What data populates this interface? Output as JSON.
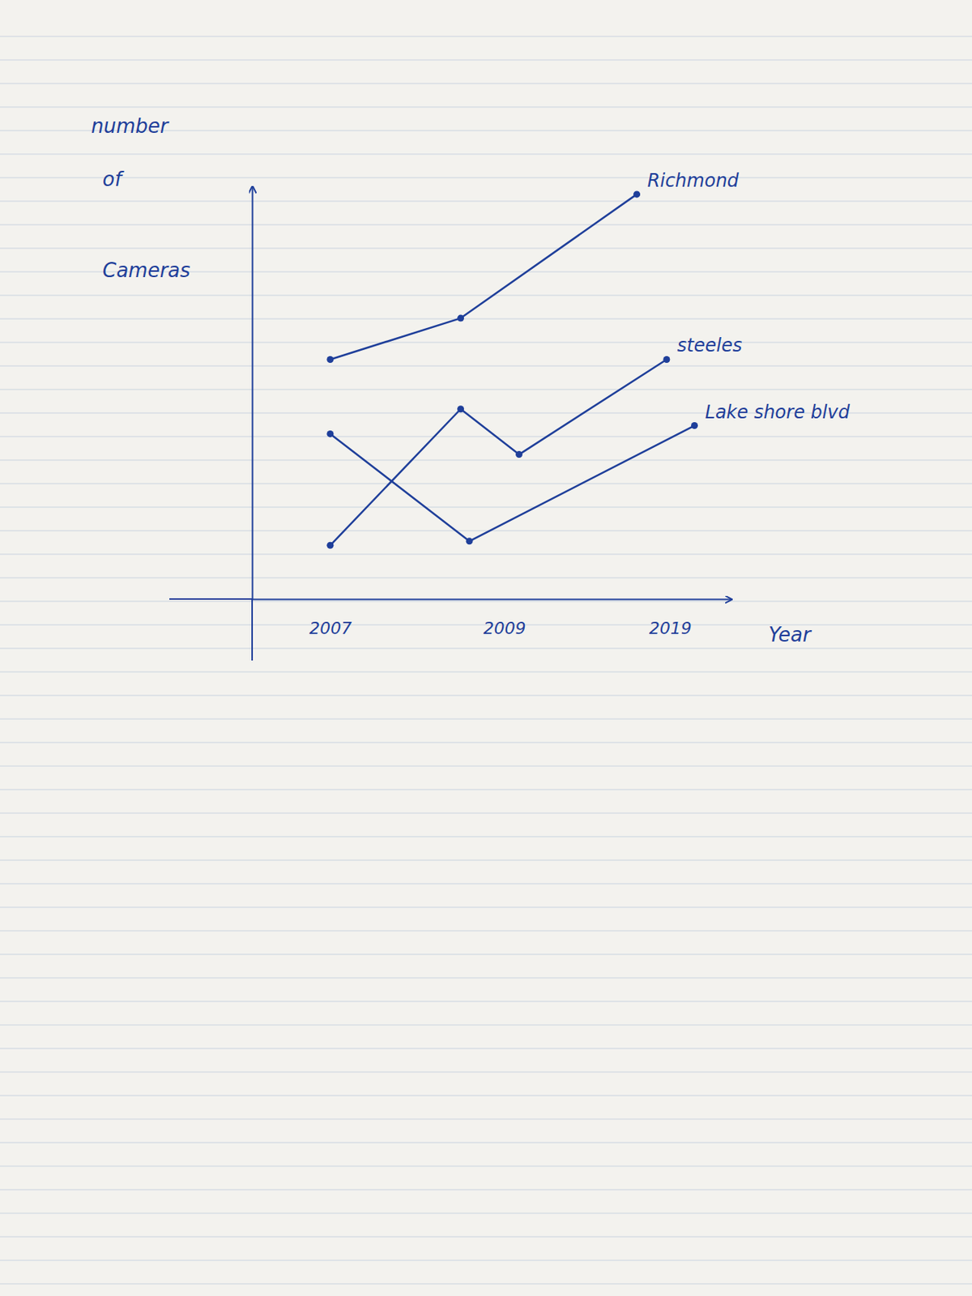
{
  "chart_data": {
    "type": "line",
    "x_label": "Year",
    "y_label": "number of Cameras",
    "xlim": [
      2006,
      2022.5
    ],
    "xticks": [
      2007,
      2009,
      2019
    ],
    "ylim": [
      0,
      10
    ],
    "tick_labels": "x",
    "grid": false,
    "marker": "circle",
    "line_style": "solid",
    "series": [
      {
        "name": "Richmond",
        "color": "#1f3f9a",
        "x": [
          2007,
          2008.5,
          2017
        ],
        "values": [
          5.8,
          6.8,
          9.8
        ]
      },
      {
        "name": "steeles",
        "color": "#1f3f9a",
        "x": [
          2007,
          2008.5,
          2009.9,
          2018.8
        ],
        "values": [
          1.3,
          4.6,
          3.5,
          5.8
        ]
      },
      {
        "name": "Lake shore blvd",
        "color": "#1f3f9a",
        "x": [
          2007,
          2008.6,
          2020.4
        ],
        "values": [
          4.0,
          1.4,
          4.2
        ]
      }
    ]
  }
}
